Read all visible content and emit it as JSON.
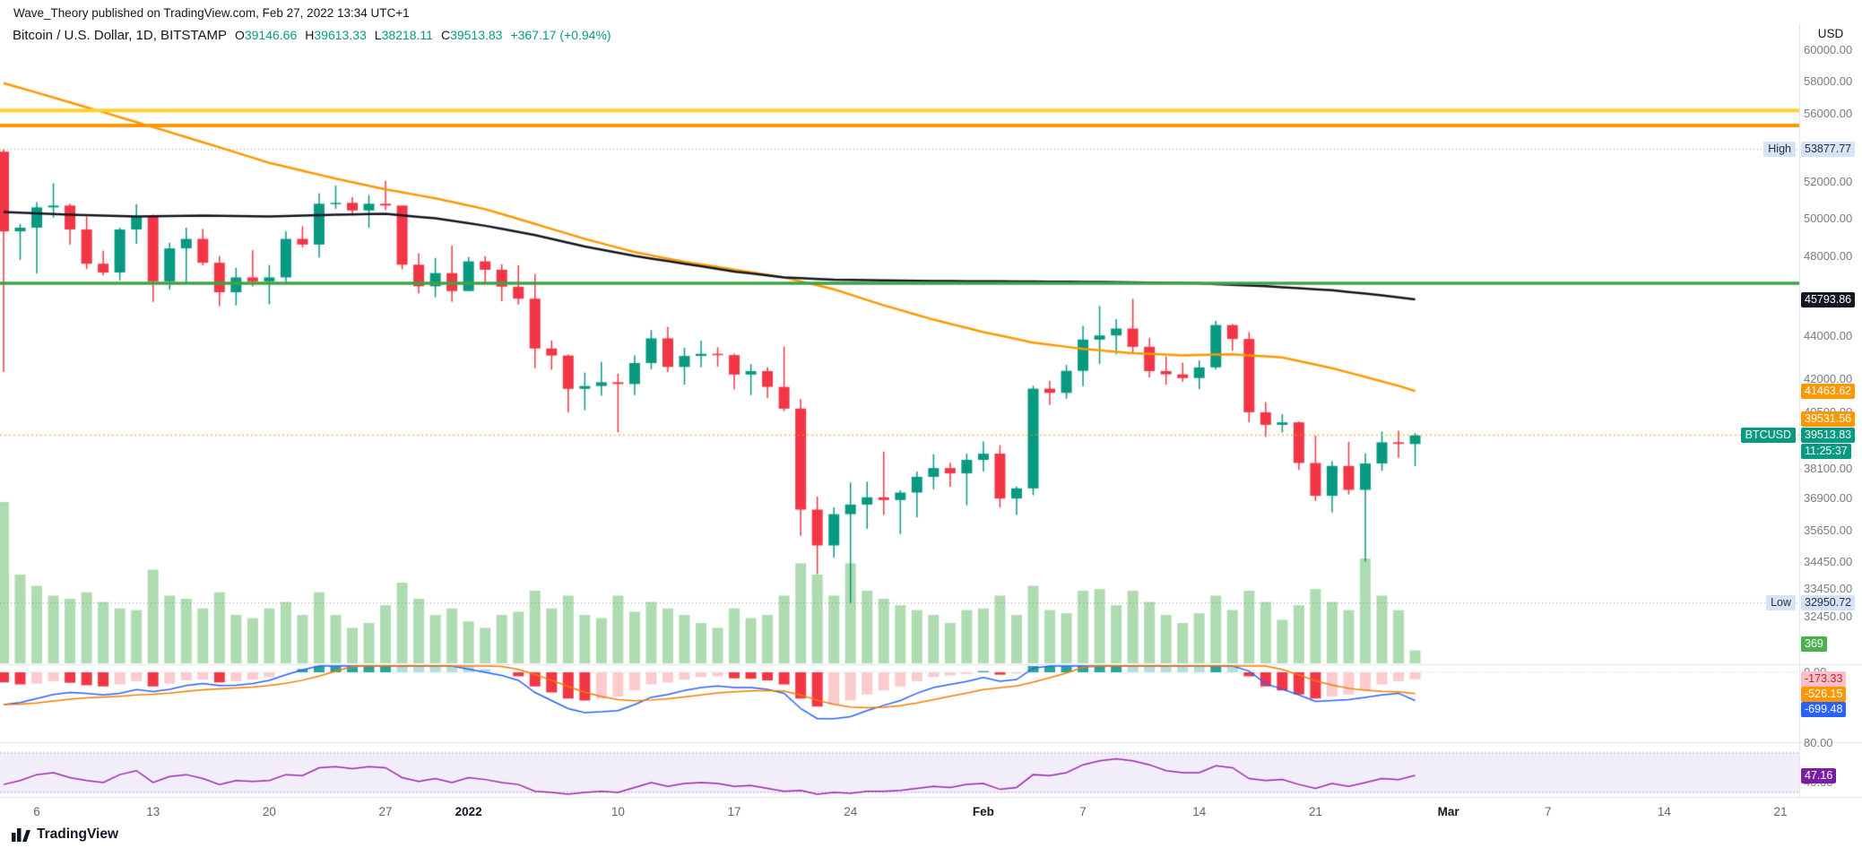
{
  "attribution": "Wave_Theory published on TradingView.com, Feb 27, 2022 13:34 UTC+1",
  "header": {
    "title": "Bitcoin / U.S. Dollar, 1D, BITSTAMP",
    "o_label": "O",
    "o_value": "39146.66",
    "h_label": "H",
    "h_value": "39613.33",
    "l_label": "L",
    "l_value": "38218.11",
    "c_label": "C",
    "c_value": "39513.83",
    "change": "+367.17 (+0.94%)"
  },
  "price_axis": {
    "currency": "USD",
    "ticks": [
      60000,
      58000,
      56000,
      52000,
      50000,
      48000,
      44000,
      42000,
      40500,
      38100,
      36900,
      35650,
      34450,
      33450,
      32450
    ],
    "badges": {
      "high_label": "High",
      "high_value": "53877.77",
      "ma_black_value": "45793.86",
      "ma_orange_value": "41463.62",
      "level_value": "39531.56",
      "symbol_tag": "BTCUSD",
      "last_price": "39513.83",
      "countdown": "11:25:37",
      "low_label": "Low",
      "low_value": "32950.72",
      "volume_value": "369"
    }
  },
  "indicator_axis": {
    "macd_zero": "0.00",
    "macd_hist_value": "-173.33",
    "macd_signal_value": "-526.15",
    "macd_line_value": "-699.48",
    "rsi_upper": "80.00",
    "rsi_lower": "40.00",
    "rsi_value": "47.16"
  },
  "time_axis": {
    "labels": [
      {
        "text": "6",
        "index": 2,
        "major": false
      },
      {
        "text": "13",
        "index": 9,
        "major": false
      },
      {
        "text": "20",
        "index": 16,
        "major": false
      },
      {
        "text": "27",
        "index": 23,
        "major": false
      },
      {
        "text": "2022",
        "index": 28,
        "major": true
      },
      {
        "text": "10",
        "index": 37,
        "major": false
      },
      {
        "text": "17",
        "index": 44,
        "major": false
      },
      {
        "text": "24",
        "index": 51,
        "major": false
      },
      {
        "text": "Feb",
        "index": 59,
        "major": true
      },
      {
        "text": "7",
        "index": 65,
        "major": false
      },
      {
        "text": "14",
        "index": 72,
        "major": false
      },
      {
        "text": "21",
        "index": 79,
        "major": false
      },
      {
        "text": "Mar",
        "index": 87,
        "major": true
      },
      {
        "text": "7",
        "index": 93,
        "major": false
      },
      {
        "text": "14",
        "index": 100,
        "major": false
      },
      {
        "text": "21",
        "index": 107,
        "major": false
      }
    ]
  },
  "logo": {
    "text": "TradingView"
  },
  "colors": {
    "up": "#089981",
    "down": "#f23645",
    "ma_black": "#131722",
    "ma_orange": "#ff9800",
    "level_yellow": "#ffd12b",
    "level_orange": "#ff9800",
    "level_green": "#43a047",
    "macd_pos": "#26a69a",
    "macd_pos_light": "#b2dfdb",
    "macd_neg": "#f23645",
    "macd_neg_light": "#fccbcd",
    "macd_line": "#2962ff",
    "macd_signal": "#f57c00",
    "rsi_line": "#9c27b0",
    "volume": "rgba(76,175,80,0.45)"
  },
  "chart_data": {
    "type": "candlestick",
    "title": "Bitcoin / U.S. Dollar, 1D, BITSTAMP",
    "start_date": "2021-12-04",
    "interval": "1D",
    "scale": "log",
    "ohlc_last": {
      "o": 39146.66,
      "h": 39613.33,
      "l": 38218.11,
      "c": 39513.83,
      "change": 367.17,
      "change_pct": 0.94
    },
    "levels": {
      "yellow_line": 56200,
      "orange_line": 55300,
      "green_line": 46600,
      "orange_dotted": 39531.56,
      "high_dotted": 53877.77,
      "low_dotted": 32950.72
    },
    "candles": [
      [
        53750,
        53877.77,
        42333,
        49300
      ],
      [
        49300,
        49700,
        47800,
        49500
      ],
      [
        49500,
        50891,
        47100,
        50600
      ],
      [
        50600,
        51936,
        50039,
        50700
      ],
      [
        50700,
        50797,
        48600,
        49400
      ],
      [
        49400,
        50100,
        47320,
        47600
      ],
      [
        47600,
        48280,
        47000,
        47150
      ],
      [
        47150,
        49500,
        46751,
        49400
      ],
      [
        49400,
        50777,
        48638,
        50100
      ],
      [
        50100,
        50200,
        45672,
        46700
      ],
      [
        46700,
        48700,
        46290,
        48400
      ],
      [
        48400,
        49500,
        46547,
        48900
      ],
      [
        48900,
        49436,
        47511,
        47650
      ],
      [
        47650,
        47995,
        45456,
        46150
      ],
      [
        46150,
        47392,
        45500,
        46900
      ],
      [
        46900,
        48300,
        46438,
        46700
      ],
      [
        46700,
        47537,
        45558,
        46900
      ],
      [
        46900,
        49300,
        46630,
        48900
      ],
      [
        48900,
        49576,
        48450,
        48600
      ],
      [
        48600,
        51375,
        47920,
        50800
      ],
      [
        50800,
        51810,
        50514,
        50850
      ],
      [
        50850,
        51160,
        50200,
        50430
      ],
      [
        50430,
        51280,
        49500,
        50800
      ],
      [
        50800,
        52088,
        50449,
        50700
      ],
      [
        50700,
        50704,
        47313,
        47550
      ],
      [
        47550,
        48139,
        46096,
        46450
      ],
      [
        46450,
        47900,
        45900,
        47120
      ],
      [
        47120,
        48548,
        45678,
        46210
      ],
      [
        46210,
        47954,
        46210,
        47722
      ],
      [
        47722,
        47990,
        46650,
        47290
      ],
      [
        47290,
        47570,
        45700,
        46430
      ],
      [
        46430,
        47520,
        45540,
        45830
      ],
      [
        45830,
        47070,
        42500,
        43420
      ],
      [
        43420,
        43800,
        42430,
        43090
      ],
      [
        43090,
        43140,
        40510,
        41560
      ],
      [
        41560,
        42300,
        40610,
        41690
      ],
      [
        41690,
        42800,
        41250,
        41860
      ],
      [
        41860,
        42250,
        39650,
        41780
      ],
      [
        41780,
        43100,
        41280,
        42740
      ],
      [
        42740,
        44300,
        42450,
        43900
      ],
      [
        43900,
        44450,
        42320,
        42560
      ],
      [
        42560,
        43450,
        41750,
        43070
      ],
      [
        43070,
        43800,
        42550,
        43170
      ],
      [
        43170,
        43480,
        42580,
        43110
      ],
      [
        43110,
        43180,
        41540,
        42210
      ],
      [
        42210,
        42690,
        41280,
        42370
      ],
      [
        42370,
        42550,
        41150,
        41650
      ],
      [
        41650,
        43500,
        40570,
        40680
      ],
      [
        40680,
        41100,
        35440,
        36460
      ],
      [
        36460,
        36980,
        34000,
        35070
      ],
      [
        35070,
        36550,
        34620,
        36280
      ],
      [
        36280,
        37550,
        32950.72,
        36660
      ],
      [
        36660,
        37580,
        35710,
        36950
      ],
      [
        36950,
        38825,
        36250,
        36840
      ],
      [
        36840,
        37230,
        35510,
        37140
      ],
      [
        37140,
        38000,
        36150,
        37780
      ],
      [
        37780,
        38720,
        37270,
        38140
      ],
      [
        38140,
        38360,
        37370,
        37920
      ],
      [
        37920,
        38740,
        36630,
        38480
      ],
      [
        38480,
        39266,
        38000,
        38740
      ],
      [
        38740,
        39100,
        36550,
        36900
      ],
      [
        36900,
        37390,
        36250,
        37310
      ],
      [
        37310,
        41700,
        37030,
        41570
      ],
      [
        41570,
        41920,
        40850,
        41380
      ],
      [
        41380,
        42650,
        41120,
        42380
      ],
      [
        42380,
        44500,
        41680,
        43840
      ],
      [
        43840,
        45470,
        42700,
        44040
      ],
      [
        44040,
        44820,
        43150,
        44370
      ],
      [
        44370,
        45821,
        43180,
        43500
      ],
      [
        43500,
        43920,
        42080,
        42370
      ],
      [
        42370,
        43050,
        41750,
        42220
      ],
      [
        42220,
        42760,
        41880,
        42050
      ],
      [
        42050,
        42860,
        41550,
        42540
      ],
      [
        42540,
        44750,
        42450,
        44540
      ],
      [
        44540,
        44580,
        43310,
        43870
      ],
      [
        43870,
        44200,
        40080,
        40520
      ],
      [
        40520,
        40970,
        39450,
        39970
      ],
      [
        39970,
        40440,
        39640,
        40080
      ],
      [
        40080,
        40120,
        38060,
        38350
      ],
      [
        38350,
        39500,
        36800,
        37010
      ],
      [
        37010,
        38430,
        36350,
        38230
      ],
      [
        38230,
        39240,
        37060,
        37250
      ],
      [
        37250,
        38750,
        34459,
        38330
      ],
      [
        38330,
        39680,
        38030,
        39220
      ],
      [
        39220,
        39720,
        38570,
        39150
      ],
      [
        39146.66,
        39613.33,
        38218.11,
        39513.83
      ]
    ],
    "volume": [
      100,
      55,
      48,
      42,
      40,
      44,
      38,
      34,
      33,
      58,
      42,
      40,
      34,
      44,
      30,
      28,
      34,
      38,
      30,
      44,
      30,
      22,
      25,
      36,
      50,
      40,
      30,
      34,
      26,
      22,
      30,
      32,
      45,
      34,
      42,
      30,
      28,
      42,
      32,
      38,
      34,
      30,
      25,
      22,
      34,
      28,
      30,
      42,
      62,
      55,
      42,
      62,
      45,
      40,
      36,
      33,
      30,
      25,
      33,
      34,
      42,
      30,
      48,
      33,
      31,
      45,
      46,
      36,
      45,
      38,
      30,
      25,
      31,
      42,
      33,
      45,
      38,
      27,
      36,
      46,
      38,
      33,
      65,
      42,
      33,
      8
    ],
    "ma_black_points": [
      [
        0,
        50350
      ],
      [
        4,
        50200
      ],
      [
        8,
        50100
      ],
      [
        12,
        50150
      ],
      [
        16,
        50100
      ],
      [
        20,
        50200
      ],
      [
        23,
        50250
      ],
      [
        26,
        50000
      ],
      [
        29,
        49600
      ],
      [
        32,
        49100
      ],
      [
        35,
        48500
      ],
      [
        38,
        48000
      ],
      [
        41,
        47600
      ],
      [
        44,
        47200
      ],
      [
        47,
        46900
      ],
      [
        50,
        46780
      ],
      [
        53,
        46750
      ],
      [
        56,
        46720
      ],
      [
        60,
        46700
      ],
      [
        64,
        46680
      ],
      [
        68,
        46650
      ],
      [
        72,
        46600
      ],
      [
        76,
        46450
      ],
      [
        80,
        46250
      ],
      [
        83,
        46000
      ],
      [
        85,
        45793.86
      ]
    ],
    "ma_orange_points": [
      [
        0,
        57900
      ],
      [
        3,
        57000
      ],
      [
        6,
        56100
      ],
      [
        9,
        55200
      ],
      [
        12,
        54300
      ],
      [
        16,
        53100
      ],
      [
        20,
        52200
      ],
      [
        23,
        51600
      ],
      [
        26,
        51100
      ],
      [
        29,
        50500
      ],
      [
        32,
        49700
      ],
      [
        35,
        48900
      ],
      [
        38,
        48200
      ],
      [
        41,
        47700
      ],
      [
        44,
        47300
      ],
      [
        47,
        46900
      ],
      [
        50,
        46300
      ],
      [
        53,
        45500
      ],
      [
        56,
        44800
      ],
      [
        59,
        44200
      ],
      [
        62,
        43700
      ],
      [
        65,
        43400
      ],
      [
        68,
        43200
      ],
      [
        71,
        43100
      ],
      [
        74,
        43150
      ],
      [
        77,
        43000
      ],
      [
        80,
        42500
      ],
      [
        82,
        42100
      ],
      [
        84,
        41700
      ],
      [
        85,
        41463.62
      ]
    ],
    "macd": {
      "hist": [
        -250,
        -300,
        -280,
        -220,
        -260,
        -320,
        -350,
        -300,
        -220,
        -350,
        -280,
        -200,
        -180,
        -250,
        -220,
        -180,
        -120,
        0,
        80,
        250,
        420,
        520,
        600,
        650,
        520,
        380,
        300,
        200,
        150,
        80,
        0,
        -100,
        -350,
        -500,
        -650,
        -700,
        -650,
        -600,
        -450,
        -300,
        -250,
        -180,
        -120,
        -100,
        -150,
        -160,
        -200,
        -300,
        -650,
        -850,
        -800,
        -700,
        -550,
        -450,
        -350,
        -220,
        -120,
        -80,
        -40,
        30,
        -60,
        -30,
        250,
        350,
        450,
        600,
        720,
        780,
        750,
        600,
        450,
        300,
        200,
        250,
        200,
        -100,
        -350,
        -450,
        -550,
        -650,
        -600,
        -550,
        -450,
        -300,
        -220,
        -173.33
      ],
      "line": [
        -800,
        -750,
        -650,
        -550,
        -500,
        -520,
        -560,
        -520,
        -430,
        -480,
        -420,
        -330,
        -280,
        -330,
        -320,
        -280,
        -200,
        -60,
        60,
        280,
        450,
        560,
        650,
        700,
        560,
        380,
        280,
        160,
        80,
        0,
        -80,
        -200,
        -500,
        -700,
        -900,
        -1000,
        -980,
        -950,
        -800,
        -620,
        -550,
        -450,
        -380,
        -340,
        -380,
        -380,
        -420,
        -520,
        -900,
        -1150,
        -1150,
        -1100,
        -950,
        -820,
        -700,
        -520,
        -380,
        -300,
        -230,
        -130,
        -220,
        -180,
        100,
        250,
        400,
        620,
        800,
        900,
        900,
        780,
        620,
        450,
        330,
        380,
        320,
        30,
        -280,
        -420,
        -560,
        -720,
        -700,
        -680,
        -620,
        -560,
        -520,
        -699.48
      ]
    },
    "rsi": {
      "upper": 70,
      "lower": 30,
      "values": [
        38,
        42,
        48,
        50,
        45,
        42,
        40,
        48,
        52,
        40,
        46,
        48,
        44,
        38,
        42,
        41,
        42,
        48,
        47,
        55,
        56,
        54,
        56,
        55,
        45,
        41,
        44,
        40,
        45,
        43,
        40,
        38,
        31,
        30,
        28,
        30,
        31,
        30,
        35,
        40,
        36,
        39,
        40,
        39,
        36,
        37,
        34,
        31,
        32,
        28,
        30,
        29,
        31,
        31,
        32,
        34,
        36,
        35,
        38,
        39,
        33,
        35,
        48,
        47,
        50,
        58,
        62,
        64,
        62,
        58,
        52,
        50,
        50,
        57,
        55,
        44,
        42,
        43,
        38,
        34,
        39,
        36,
        40,
        44,
        43,
        47.16
      ]
    }
  }
}
